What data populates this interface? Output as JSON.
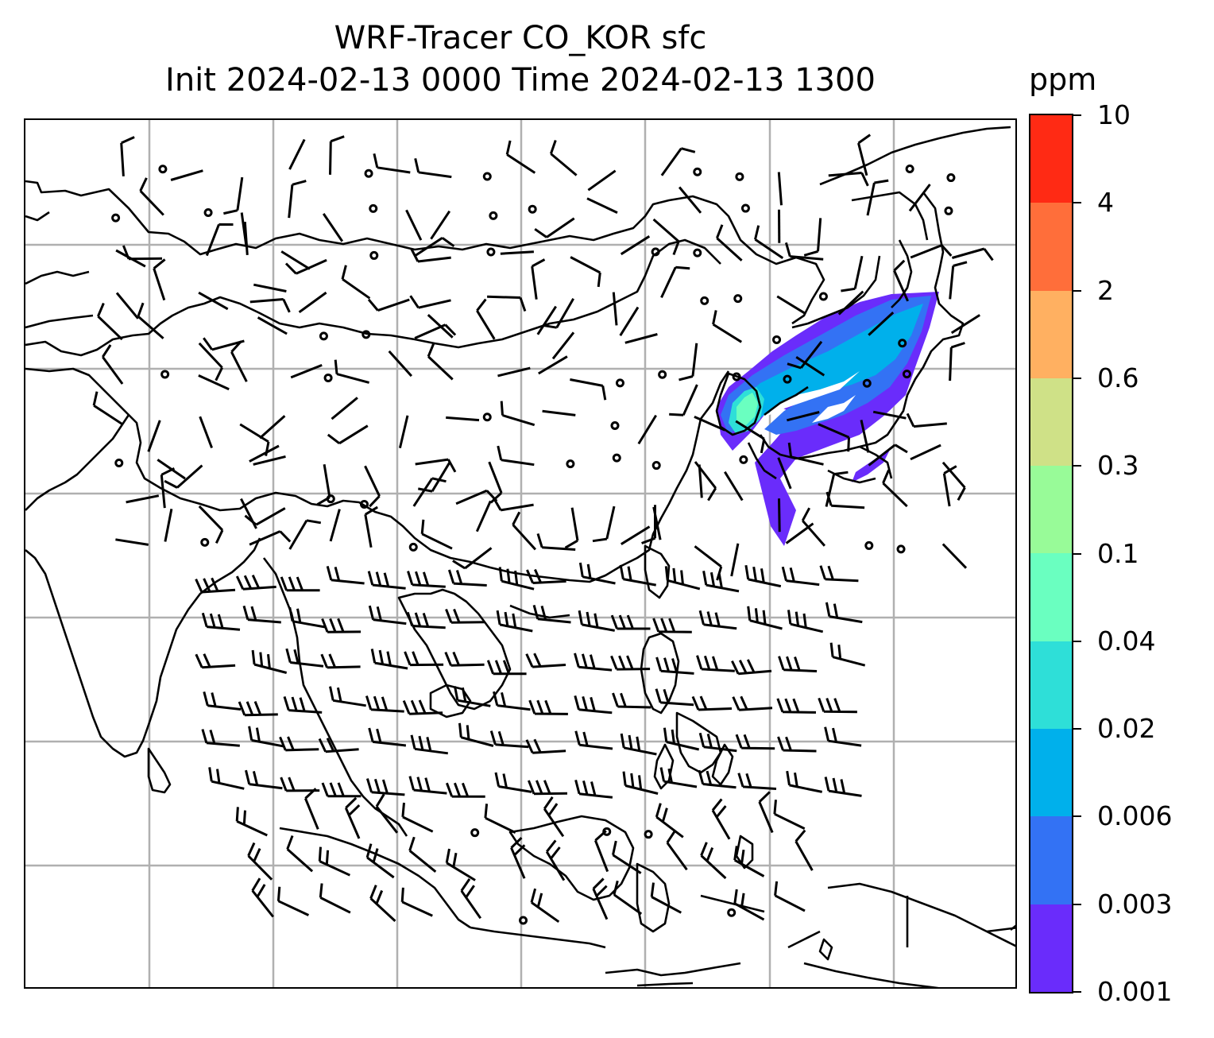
{
  "header": {
    "title_line1": "WRF-Tracer CO_KOR sfc",
    "title_line2": "Init 2024-02-13 0000 Time 2024-02-13 1300"
  },
  "colorbar": {
    "unit": "ppm",
    "levels": [
      "10",
      "4",
      "2",
      "0.6",
      "0.3",
      "0.1",
      "0.04",
      "0.02",
      "0.006",
      "0.003",
      "0.001"
    ],
    "colors_top_to_bottom": [
      "#ff2a14",
      "#ff6e3a",
      "#ffb061",
      "#cfe187",
      "#98fb98",
      "#6affc0",
      "#2edfd8",
      "#00b0eb",
      "#3372f4",
      "#6a2cfb"
    ]
  },
  "map": {
    "type": "filled-contour-with-wind-barbs",
    "field": "CO_KOR tracer concentration",
    "region": "East and Southeast Asia",
    "gridlines": true,
    "barb_color": "#000000",
    "coastline_color": "#000000"
  }
}
